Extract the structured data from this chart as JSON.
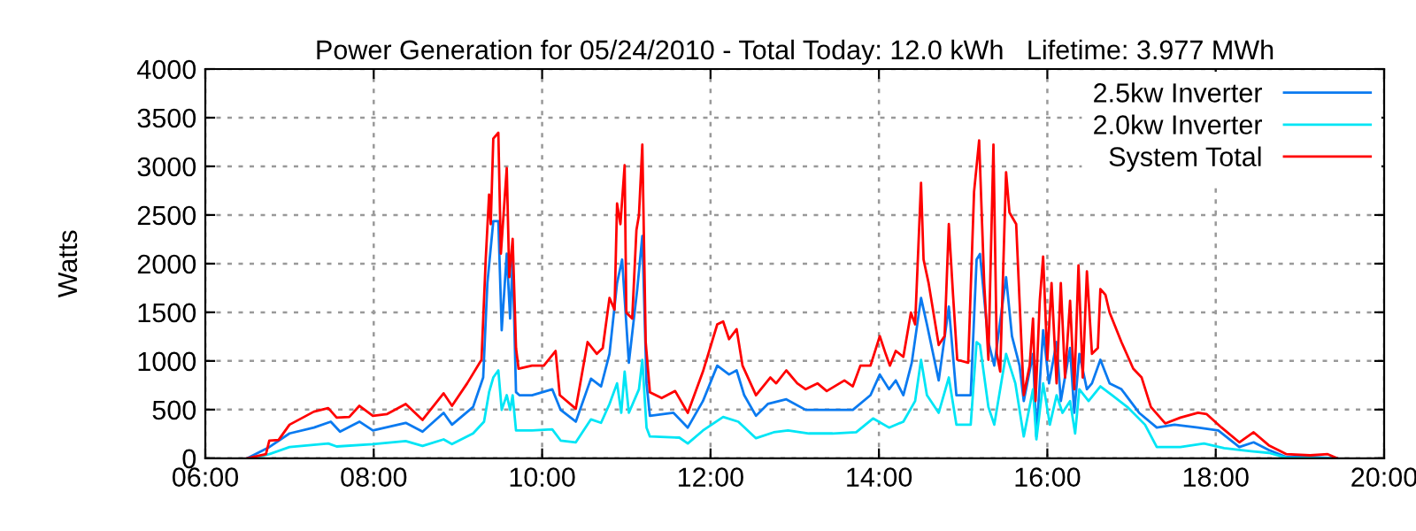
{
  "chart_data": {
    "type": "line",
    "title": "Power Generation for 05/24/2010 - Total Today: 12.0 kWh   Lifetime: 3.977 MWh",
    "ylabel": "Watts",
    "xlim": [
      6,
      20
    ],
    "xticks": [
      {
        "value": 6,
        "label": "06:00"
      },
      {
        "value": 8,
        "label": "08:00"
      },
      {
        "value": 10,
        "label": "10:00"
      },
      {
        "value": 12,
        "label": "12:00"
      },
      {
        "value": 14,
        "label": "14:00"
      },
      {
        "value": 16,
        "label": "16:00"
      },
      {
        "value": 18,
        "label": "18:00"
      },
      {
        "value": 20,
        "label": "20:00"
      }
    ],
    "ylim": [
      0,
      4000
    ],
    "yticks": [
      0,
      500,
      1000,
      1500,
      2000,
      2500,
      3000,
      3500,
      4000
    ],
    "grid": true,
    "legend": "top right",
    "line_style": "solid",
    "series": [
      {
        "name": "2.5kw Inverter",
        "color": "#0a7af0",
        "x": [
          6.5,
          6.76,
          7.0,
          7.29,
          7.49,
          7.6,
          7.83,
          7.99,
          8.38,
          8.58,
          8.83,
          8.93,
          9.18,
          9.3,
          9.35,
          9.42,
          9.48,
          9.52,
          9.58,
          9.62,
          9.65,
          9.69,
          9.73,
          9.88,
          10.12,
          10.22,
          10.4,
          10.58,
          10.7,
          10.8,
          10.89,
          10.95,
          11.03,
          11.13,
          11.19,
          11.24,
          11.28,
          11.56,
          11.73,
          11.91,
          12.08,
          12.22,
          12.31,
          12.4,
          12.54,
          12.68,
          12.9,
          13.13,
          13.45,
          13.69,
          13.9,
          14.01,
          14.12,
          14.2,
          14.29,
          14.39,
          14.5,
          14.57,
          14.71,
          14.83,
          14.92,
          15.09,
          15.16,
          15.2,
          15.3,
          15.37,
          15.51,
          15.58,
          15.67,
          15.72,
          15.83,
          15.87,
          15.95,
          16.02,
          16.11,
          16.16,
          16.27,
          16.32,
          16.38,
          16.47,
          16.53,
          16.63,
          16.74,
          16.88,
          17.09,
          17.3,
          17.51,
          17.79,
          18.03,
          18.28,
          18.45,
          18.63,
          18.84,
          19.12,
          19.44
        ],
        "values": [
          0,
          115,
          255,
          315,
          376,
          273,
          376,
          285,
          364,
          273,
          467,
          345,
          527,
          830,
          1800,
          2436,
          2436,
          1315,
          2103,
          1436,
          2042,
          679,
          648,
          648,
          709,
          497,
          376,
          818,
          739,
          1073,
          1800,
          2042,
          982,
          1739,
          2285,
          770,
          436,
          467,
          315,
          588,
          952,
          861,
          903,
          648,
          436,
          558,
          606,
          497,
          497,
          497,
          648,
          861,
          709,
          800,
          648,
          982,
          1648,
          1376,
          800,
          1558,
          648,
          648,
          2042,
          2100,
          1194,
          952,
          1861,
          1255,
          952,
          588,
          1073,
          224,
          1315,
          770,
          1194,
          588,
          1133,
          467,
          1073,
          709,
          770,
          1012,
          770,
          709,
          467,
          315,
          345,
          315,
          285,
          115,
          164,
          85,
          12,
          12,
          0
        ]
      },
      {
        "name": "2.0kw Inverter",
        "color": "#00e5f5",
        "x": [
          6.55,
          6.76,
          7.0,
          7.46,
          7.56,
          7.99,
          8.38,
          8.58,
          8.83,
          8.93,
          9.18,
          9.31,
          9.37,
          9.42,
          9.48,
          9.52,
          9.58,
          9.62,
          9.65,
          9.69,
          9.88,
          10.12,
          10.22,
          10.4,
          10.58,
          10.7,
          10.8,
          10.89,
          10.94,
          10.98,
          11.03,
          11.15,
          11.19,
          11.24,
          11.28,
          11.63,
          11.73,
          11.91,
          12.15,
          12.33,
          12.54,
          12.75,
          12.92,
          13.17,
          13.45,
          13.73,
          13.93,
          14.12,
          14.29,
          14.43,
          14.5,
          14.57,
          14.71,
          14.83,
          14.92,
          15.09,
          15.16,
          15.2,
          15.3,
          15.37,
          15.51,
          15.62,
          15.72,
          15.83,
          15.87,
          15.95,
          16.03,
          16.11,
          16.18,
          16.27,
          16.33,
          16.38,
          16.49,
          16.63,
          16.77,
          16.95,
          17.16,
          17.3,
          17.58,
          17.86,
          18.1,
          18.42,
          18.63,
          18.84,
          19.44
        ],
        "values": [
          0,
          42,
          115,
          152,
          121,
          145,
          176,
          127,
          194,
          145,
          255,
          376,
          679,
          830,
          903,
          497,
          648,
          497,
          648,
          285,
          285,
          297,
          182,
          164,
          400,
          364,
          558,
          770,
          467,
          891,
          467,
          709,
          1012,
          315,
          224,
          212,
          152,
          285,
          424,
          376,
          206,
          267,
          285,
          255,
          255,
          267,
          409,
          315,
          376,
          588,
          1012,
          648,
          467,
          830,
          345,
          345,
          1194,
          1164,
          527,
          345,
          1073,
          770,
          224,
          709,
          194,
          770,
          345,
          648,
          467,
          588,
          255,
          709,
          588,
          739,
          648,
          527,
          345,
          115,
          115,
          152,
          103,
          73,
          55,
          6,
          0
        ]
      },
      {
        "name": "System Total",
        "color": "#ff0000",
        "x": [
          6.5,
          6.72,
          6.76,
          6.87,
          7.0,
          7.29,
          7.46,
          7.56,
          7.71,
          7.83,
          7.99,
          8.16,
          8.38,
          8.58,
          8.83,
          8.93,
          9.11,
          9.28,
          9.33,
          9.37,
          9.39,
          9.42,
          9.48,
          9.51,
          9.58,
          9.61,
          9.65,
          9.69,
          9.72,
          9.88,
          10.02,
          10.16,
          10.21,
          10.4,
          10.54,
          10.65,
          10.72,
          10.8,
          10.86,
          10.89,
          10.93,
          10.98,
          11.0,
          11.07,
          11.12,
          11.15,
          11.19,
          11.23,
          11.28,
          11.42,
          11.58,
          11.73,
          11.91,
          12.08,
          12.15,
          12.22,
          12.31,
          12.38,
          12.54,
          12.71,
          12.78,
          12.9,
          13.03,
          13.13,
          13.27,
          13.38,
          13.59,
          13.69,
          13.78,
          13.9,
          14.01,
          14.08,
          14.13,
          14.2,
          14.29,
          14.38,
          14.43,
          14.5,
          14.53,
          14.59,
          14.71,
          14.78,
          14.83,
          14.88,
          14.93,
          15.06,
          15.13,
          15.19,
          15.25,
          15.3,
          15.36,
          15.4,
          15.44,
          15.51,
          15.55,
          15.63,
          15.67,
          15.72,
          15.79,
          15.83,
          15.86,
          15.91,
          15.95,
          16.0,
          16.05,
          16.11,
          16.16,
          16.21,
          16.27,
          16.32,
          16.37,
          16.42,
          16.47,
          16.53,
          16.6,
          16.63,
          16.69,
          16.74,
          16.88,
          17.02,
          17.12,
          17.23,
          17.4,
          17.58,
          17.79,
          17.89,
          18.07,
          18.28,
          18.45,
          18.63,
          18.84,
          19.12,
          19.33,
          19.44
        ],
        "values": [
          0,
          42,
          182,
          188,
          345,
          479,
          515,
          418,
          424,
          539,
          436,
          455,
          558,
          394,
          667,
          539,
          770,
          1012,
          2042,
          2709,
          2406,
          3285,
          3345,
          2103,
          2982,
          1861,
          2255,
          1133,
          921,
          952,
          952,
          1103,
          648,
          509,
          1194,
          1073,
          1133,
          1648,
          1527,
          2618,
          2406,
          3012,
          1497,
          1436,
          2345,
          2497,
          3224,
          1194,
          679,
          618,
          691,
          467,
          891,
          1376,
          1406,
          1224,
          1327,
          952,
          648,
          830,
          770,
          903,
          770,
          709,
          770,
          691,
          800,
          739,
          952,
          952,
          1255,
          1073,
          952,
          1103,
          1042,
          1497,
          1376,
          2830,
          2042,
          1800,
          1164,
          1255,
          2406,
          1679,
          1012,
          982,
          2739,
          3267,
          1800,
          1012,
          3224,
          1073,
          891,
          2939,
          2527,
          2406,
          1618,
          648,
          952,
          1436,
          588,
          1618,
          2073,
          1012,
          1800,
          770,
          1800,
          830,
          1618,
          709,
          1982,
          830,
          1921,
          1073,
          1133,
          1739,
          1679,
          1497,
          1194,
          921,
          830,
          527,
          358,
          418,
          467,
          455,
          315,
          164,
          267,
          133,
          42,
          30,
          42,
          0
        ]
      }
    ]
  }
}
